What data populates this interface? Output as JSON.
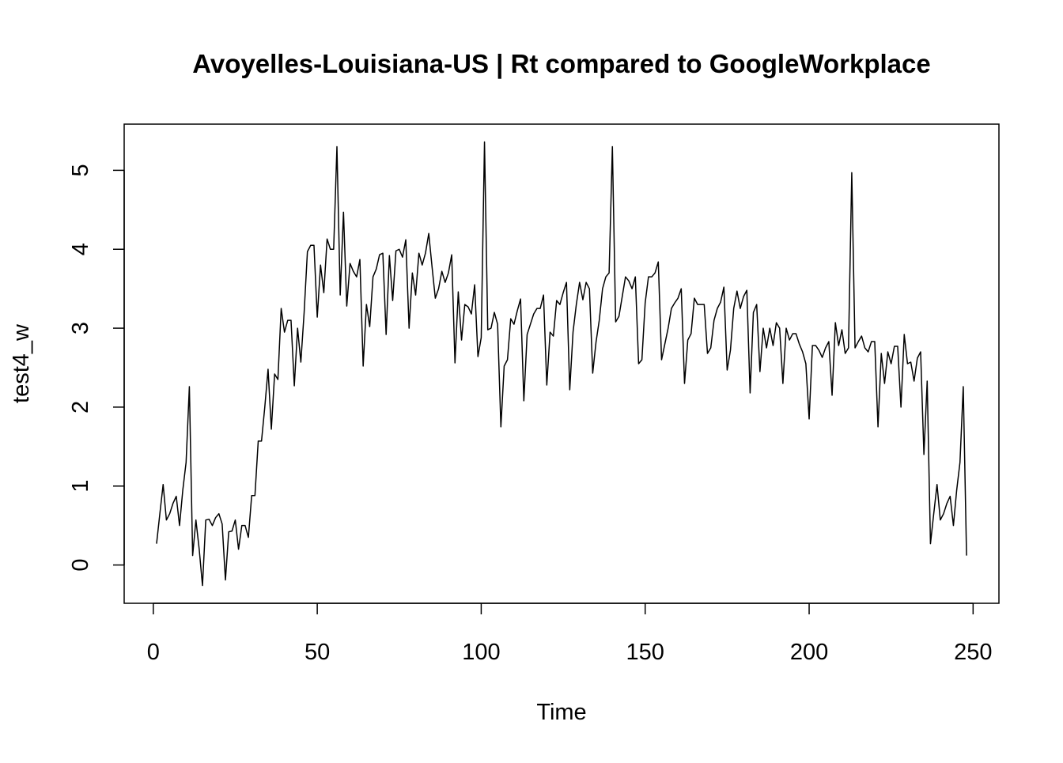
{
  "chart_data": {
    "type": "line",
    "title": "Avoyelles-Louisiana-US | Rt compared to GoogleWorkplace",
    "xlabel": "Time",
    "ylabel": "test4_w",
    "x": [
      1,
      2,
      3,
      4,
      5,
      6,
      7,
      8,
      9,
      10,
      11,
      12,
      13,
      14,
      15,
      16,
      17,
      18,
      19,
      20,
      21,
      22,
      23,
      24,
      25,
      26,
      27,
      28,
      29,
      30,
      31,
      32,
      33,
      34,
      35,
      36,
      37,
      38,
      39,
      40,
      41,
      42,
      43,
      44,
      45,
      46,
      47,
      48,
      49,
      50,
      51,
      52,
      53,
      54,
      55,
      56,
      57,
      58,
      59,
      60,
      61,
      62,
      63,
      64,
      65,
      66,
      67,
      68,
      69,
      70,
      71,
      72,
      73,
      74,
      75,
      76,
      77,
      78,
      79,
      80,
      81,
      82,
      83,
      84,
      85,
      86,
      87,
      88,
      89,
      90,
      91,
      92,
      93,
      94,
      95,
      96,
      97,
      98,
      99,
      100,
      101,
      102,
      103,
      104,
      105,
      106,
      107,
      108,
      109,
      110,
      111,
      112,
      113,
      114,
      115,
      116,
      117,
      118,
      119,
      120,
      121,
      122,
      123,
      124,
      125,
      126,
      127,
      128,
      129,
      130,
      131,
      132,
      133,
      134,
      135,
      136,
      137,
      138,
      139,
      140,
      141,
      142,
      143,
      144,
      145,
      146,
      147,
      148,
      149,
      150,
      151,
      152,
      153,
      154,
      155,
      156,
      157,
      158,
      159,
      160,
      161,
      162,
      163,
      164,
      165,
      166,
      167,
      168,
      169,
      170,
      171,
      172,
      173,
      174,
      175,
      176,
      177,
      178,
      179,
      180,
      181,
      182,
      183,
      184,
      185,
      186,
      187,
      188,
      189,
      190,
      191,
      192,
      193,
      194,
      195,
      196,
      197,
      198,
      199,
      200,
      201,
      202,
      203,
      204,
      205,
      206,
      207,
      208,
      209,
      210,
      211,
      212,
      213,
      214,
      215,
      216,
      217,
      218,
      219,
      220,
      221,
      222,
      223,
      224,
      225,
      226,
      227,
      228,
      229,
      230,
      231,
      232,
      233,
      234,
      235,
      236,
      237,
      238,
      239,
      240,
      241,
      242,
      243,
      244,
      245,
      246,
      247,
      248
    ],
    "series": [
      {
        "name": "test4_w",
        "color": "#000000",
        "values": [
          0.27,
          0.65,
          1.02,
          0.57,
          0.65,
          0.78,
          0.87,
          0.5,
          0.95,
          1.3,
          2.26,
          0.12,
          0.57,
          0.2,
          -0.26,
          0.57,
          0.58,
          0.5,
          0.6,
          0.65,
          0.52,
          -0.19,
          0.42,
          0.43,
          0.57,
          0.2,
          0.5,
          0.5,
          0.35,
          0.88,
          0.88,
          1.57,
          1.57,
          2.0,
          2.48,
          1.72,
          2.42,
          2.35,
          3.25,
          2.95,
          3.1,
          3.1,
          2.27,
          3.0,
          2.57,
          3.2,
          3.97,
          4.05,
          4.05,
          3.14,
          3.8,
          3.45,
          4.13,
          4.0,
          4.0,
          5.3,
          3.42,
          4.47,
          3.28,
          3.82,
          3.72,
          3.65,
          3.87,
          2.52,
          3.3,
          3.02,
          3.65,
          3.75,
          3.93,
          3.95,
          2.92,
          3.92,
          3.35,
          3.98,
          4.0,
          3.9,
          4.12,
          3.0,
          3.7,
          3.42,
          3.95,
          3.8,
          3.95,
          4.2,
          3.78,
          3.38,
          3.5,
          3.72,
          3.58,
          3.7,
          3.93,
          2.56,
          3.46,
          2.85,
          3.3,
          3.27,
          3.18,
          3.55,
          2.64,
          2.88,
          5.36,
          2.98,
          3.0,
          3.2,
          3.05,
          1.75,
          2.52,
          2.6,
          3.12,
          3.05,
          3.22,
          3.37,
          2.08,
          2.92,
          3.05,
          3.18,
          3.25,
          3.25,
          3.42,
          2.28,
          2.95,
          2.9,
          3.35,
          3.3,
          3.45,
          3.58,
          2.22,
          2.95,
          3.3,
          3.58,
          3.36,
          3.58,
          3.5,
          2.43,
          2.82,
          3.1,
          3.5,
          3.65,
          3.7,
          5.3,
          3.08,
          3.15,
          3.4,
          3.65,
          3.6,
          3.5,
          3.65,
          2.55,
          2.6,
          3.32,
          3.65,
          3.65,
          3.7,
          3.84,
          2.6,
          2.8,
          3.0,
          3.25,
          3.32,
          3.38,
          3.5,
          2.3,
          2.85,
          2.93,
          3.38,
          3.3,
          3.3,
          3.3,
          2.68,
          2.75,
          3.1,
          3.25,
          3.33,
          3.52,
          2.47,
          2.72,
          3.25,
          3.47,
          3.25,
          3.4,
          3.48,
          2.18,
          3.2,
          3.3,
          2.45,
          3.0,
          2.75,
          3.0,
          2.78,
          3.07,
          3.0,
          2.3,
          3.0,
          2.85,
          2.93,
          2.93,
          2.8,
          2.7,
          2.55,
          1.85,
          2.78,
          2.78,
          2.72,
          2.63,
          2.75,
          2.83,
          2.15,
          3.07,
          2.78,
          2.98,
          2.68,
          2.75,
          4.97,
          2.75,
          2.83,
          2.9,
          2.75,
          2.7,
          2.83,
          2.83,
          1.75,
          2.68,
          2.3,
          2.7,
          2.55,
          2.77,
          2.77,
          2.0,
          2.92,
          2.55,
          2.57,
          2.33,
          2.62,
          2.7,
          1.4,
          2.33,
          0.27,
          0.65,
          1.02,
          0.57,
          0.65,
          0.78,
          0.87,
          0.5,
          0.95,
          1.3,
          2.26,
          0.12
        ]
      }
    ],
    "xlim": [
      -8.88,
      257.88
    ],
    "ylim": [
      -0.485,
      5.585
    ],
    "xticks": [
      0,
      50,
      100,
      150,
      200,
      250
    ],
    "yticks": [
      0,
      1,
      2,
      3,
      4,
      5
    ]
  }
}
